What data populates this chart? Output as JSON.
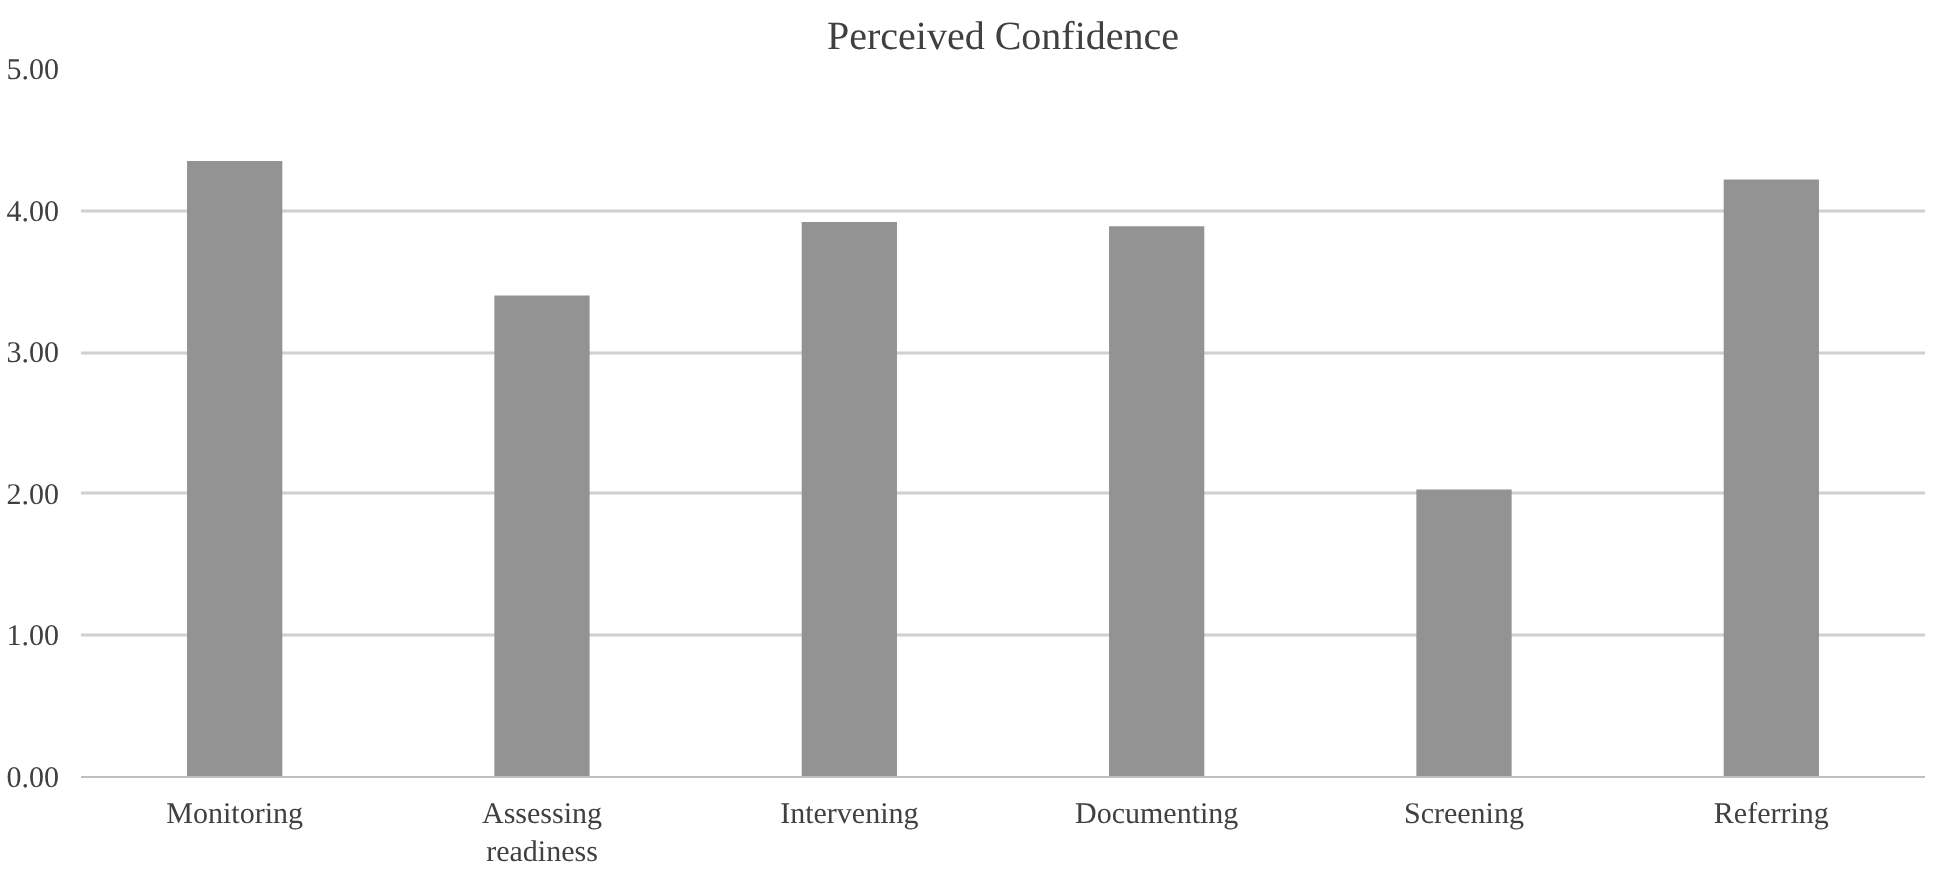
{
  "chart_data": {
    "type": "bar",
    "title": "Perceived Confidence",
    "categories": [
      "Monitoring",
      "Assessing readiness",
      "Intervening",
      "Documenting",
      "Screening",
      "Referring"
    ],
    "values": [
      4.35,
      3.4,
      3.92,
      3.89,
      2.03,
      4.22
    ],
    "color": "#939393",
    "ylim": [
      0,
      5
    ],
    "yticks": [
      {
        "value": 0,
        "label": "0.00"
      },
      {
        "value": 1,
        "label": "1.00"
      },
      {
        "value": 2,
        "label": "2.00"
      },
      {
        "value": 3,
        "label": "3.00"
      },
      {
        "value": 4,
        "label": "4.00"
      },
      {
        "value": 5,
        "label": "5.00"
      }
    ],
    "grid": "y"
  }
}
